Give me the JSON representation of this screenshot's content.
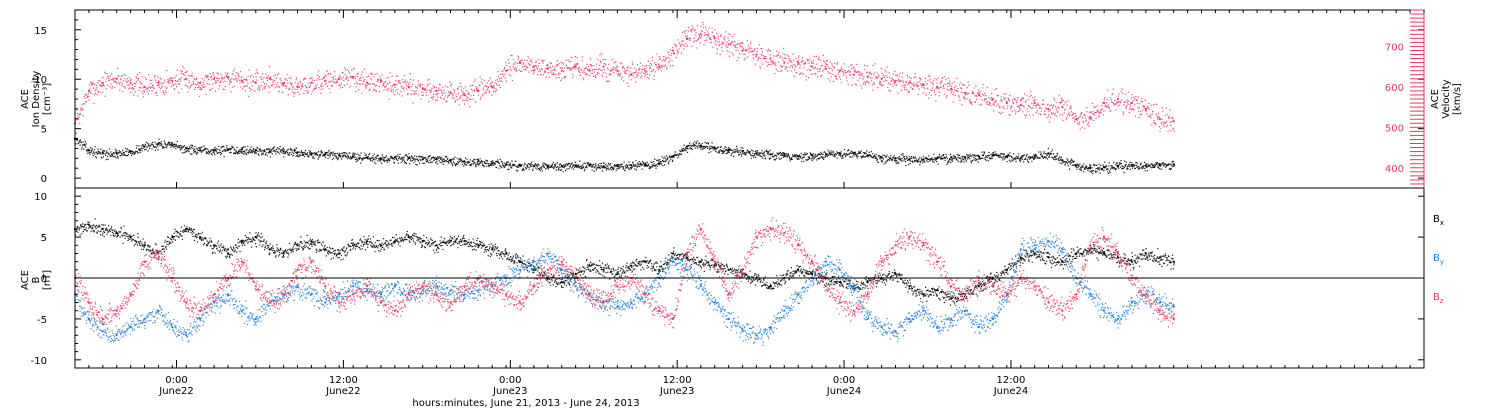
{
  "chart_data": [
    {
      "type": "scatter",
      "panel": "top",
      "ylabel_left": [
        "ACE",
        "Ion Density",
        "[cm⁻³]"
      ],
      "ylabel_right": [
        "ACE",
        "Velocity",
        "[km/s]"
      ],
      "ylim_left": [
        -1,
        17
      ],
      "ylim_right": [
        350,
        790
      ],
      "yticks_left": [
        0,
        5,
        10,
        15
      ],
      "yticks_right": [
        400,
        500,
        600,
        700
      ],
      "grid": false,
      "series": [
        {
          "axis": "left",
          "color": "#000000",
          "x": [
            0,
            1,
            2,
            3,
            4,
            5,
            6,
            7,
            8,
            9,
            10,
            11,
            12,
            13,
            14,
            15,
            16,
            17,
            18,
            19,
            20,
            21,
            22,
            23,
            24,
            25,
            26,
            27,
            28,
            29,
            30,
            31,
            32,
            33,
            34,
            35,
            36,
            37,
            38,
            39,
            40,
            41,
            42,
            43,
            44,
            45,
            46,
            47,
            48,
            49,
            50,
            51,
            52,
            53,
            54,
            55,
            56,
            57,
            58,
            59,
            60,
            61,
            62,
            63,
            64,
            65,
            66,
            67,
            68,
            69,
            70,
            71,
            72,
            73,
            74,
            75,
            76,
            77,
            78,
            79
          ],
          "y": [
            4,
            2.8,
            2.5,
            2.5,
            2.7,
            3.2,
            3.5,
            3.3,
            3,
            2.8,
            2.8,
            2.9,
            2.9,
            2.8,
            2.7,
            2.7,
            2.6,
            2.5,
            2.4,
            2.3,
            2.2,
            2.1,
            2,
            2.1,
            2,
            1.9,
            1.9,
            1.8,
            1.7,
            1.7,
            1.5,
            1.4,
            1.3,
            1.2,
            1.2,
            1.2,
            1.3,
            1.3,
            1.2,
            1.2,
            1.3,
            1.4,
            1.5,
            2.2,
            3.2,
            3.3,
            3,
            2.8,
            2.7,
            2.5,
            2.4,
            2.3,
            2.2,
            2.3,
            2.4,
            2.5,
            2.5,
            2.3,
            2.1,
            2,
            1.9,
            1.9,
            2,
            2.1,
            2.1,
            2.2,
            2.3,
            2.2,
            2,
            2.2,
            2.5,
            1.8,
            1.3,
            1,
            1.1,
            1.2,
            1.3,
            1.3,
            1.4,
            1.4
          ]
        },
        {
          "axis": "right",
          "color": "#e8375e",
          "x": [
            0,
            1,
            2,
            3,
            4,
            5,
            6,
            7,
            8,
            9,
            10,
            11,
            12,
            13,
            14,
            15,
            16,
            17,
            18,
            19,
            20,
            21,
            22,
            23,
            24,
            25,
            26,
            27,
            28,
            29,
            30,
            31,
            32,
            33,
            34,
            35,
            36,
            37,
            38,
            39,
            40,
            41,
            42,
            43,
            44,
            45,
            46,
            47,
            48,
            49,
            50,
            51,
            52,
            53,
            54,
            55,
            56,
            57,
            58,
            59,
            60,
            61,
            62,
            63,
            64,
            65,
            66,
            67,
            68,
            69,
            70,
            71,
            72,
            73,
            74,
            75,
            76,
            77,
            78,
            79
          ],
          "y": [
            510,
            590,
            610,
            620,
            610,
            600,
            610,
            615,
            620,
            610,
            620,
            625,
            615,
            610,
            620,
            610,
            600,
            610,
            615,
            620,
            625,
            610,
            615,
            605,
            600,
            595,
            590,
            585,
            580,
            590,
            600,
            640,
            660,
            650,
            645,
            640,
            650,
            640,
            650,
            640,
            630,
            640,
            650,
            690,
            720,
            730,
            720,
            705,
            690,
            680,
            670,
            660,
            660,
            650,
            645,
            640,
            630,
            625,
            620,
            615,
            610,
            605,
            600,
            595,
            585,
            580,
            570,
            560,
            555,
            560,
            545,
            550,
            520,
            525,
            560,
            570,
            560,
            545,
            520,
            515
          ]
        }
      ]
    },
    {
      "type": "scatter",
      "panel": "bottom",
      "ylabel_left": [
        "ACE",
        "B",
        "[nT]"
      ],
      "ylim_left": [
        -11,
        11
      ],
      "yticks_left": [
        -10,
        -5,
        0,
        5,
        10
      ],
      "zero_line": true,
      "grid": false,
      "legend_position": "right",
      "series": [
        {
          "name": "Bx",
          "label_main": "B",
          "label_sub": "x",
          "color": "#000000",
          "x": [
            0,
            1,
            2,
            3,
            4,
            5,
            6,
            7,
            8,
            9,
            10,
            11,
            12,
            13,
            14,
            15,
            16,
            17,
            18,
            19,
            20,
            21,
            22,
            23,
            24,
            25,
            26,
            27,
            28,
            29,
            30,
            31,
            32,
            33,
            34,
            35,
            36,
            37,
            38,
            39,
            40,
            41,
            42,
            43,
            44,
            45,
            46,
            47,
            48,
            49,
            50,
            51,
            52,
            53,
            54,
            55,
            56,
            57,
            58,
            59,
            60,
            61,
            62,
            63,
            64,
            65,
            66,
            67,
            68,
            69,
            70,
            71,
            72,
            73,
            74,
            75,
            76,
            77,
            78,
            79
          ],
          "y": [
            6,
            6.5,
            6,
            5.5,
            5,
            4,
            3,
            5,
            6,
            5,
            4,
            3,
            4.5,
            5,
            3.5,
            3,
            4,
            4.5,
            3.5,
            3,
            4,
            4.5,
            4,
            4.5,
            5,
            4.5,
            4,
            4.5,
            4.5,
            4,
            3.5,
            3,
            2,
            1,
            0,
            -0.5,
            0.5,
            1.5,
            1,
            0.5,
            1.5,
            2,
            1,
            3,
            2.5,
            2,
            1.5,
            1,
            0.5,
            0,
            -1,
            0,
            1,
            0.5,
            0,
            -0.5,
            -1,
            -0.5,
            0,
            0.5,
            -1,
            -2,
            -1.5,
            -2.5,
            -2,
            -1,
            0,
            1,
            2.5,
            3,
            2.5,
            2,
            3,
            3.5,
            3,
            2.5,
            2,
            3,
            2.5,
            2
          ]
        },
        {
          "name": "By",
          "label_main": "B",
          "label_sub": "y",
          "color": "#1f7fd6",
          "x": [
            0,
            1,
            2,
            3,
            4,
            5,
            6,
            7,
            8,
            9,
            10,
            11,
            12,
            13,
            14,
            15,
            16,
            17,
            18,
            19,
            20,
            21,
            22,
            23,
            24,
            25,
            26,
            27,
            28,
            29,
            30,
            31,
            32,
            33,
            34,
            35,
            36,
            37,
            38,
            39,
            40,
            41,
            42,
            43,
            44,
            45,
            46,
            47,
            48,
            49,
            50,
            51,
            52,
            53,
            54,
            55,
            56,
            57,
            58,
            59,
            60,
            61,
            62,
            63,
            64,
            65,
            66,
            67,
            68,
            69,
            70,
            71,
            72,
            73,
            74,
            75,
            76,
            77,
            78,
            79
          ],
          "y": [
            -2,
            -5,
            -6.5,
            -7,
            -6,
            -5,
            -4,
            -6,
            -7,
            -5,
            -3,
            -2,
            -4,
            -5,
            -3,
            -2,
            -1,
            -2,
            -3,
            -2,
            -1,
            -1.5,
            -2,
            -1,
            -2,
            -1.5,
            -1,
            -1.5,
            -2,
            -1.5,
            -1,
            0,
            1,
            2,
            3,
            1,
            -1,
            -2,
            -3,
            -3.5,
            -3,
            -2,
            0,
            2,
            1,
            -1,
            -3,
            -5,
            -6.5,
            -7,
            -6,
            -4,
            -2,
            0,
            2,
            1,
            -1,
            -5,
            -6,
            -6.5,
            -5,
            -4,
            -6,
            -5,
            -4,
            -6,
            -5,
            -2,
            3.5,
            4,
            4.5,
            3.5,
            0,
            -2,
            -4,
            -5,
            -3,
            -2,
            -3,
            -3.5
          ]
        },
        {
          "name": "Bz",
          "label_main": "B",
          "label_sub": "z",
          "color": "#e8375e",
          "x": [
            0,
            1,
            2,
            3,
            4,
            5,
            6,
            7,
            8,
            9,
            10,
            11,
            12,
            13,
            14,
            15,
            16,
            17,
            18,
            19,
            20,
            21,
            22,
            23,
            24,
            25,
            26,
            27,
            28,
            29,
            30,
            31,
            32,
            33,
            34,
            35,
            36,
            37,
            38,
            39,
            40,
            41,
            42,
            43,
            44,
            45,
            46,
            47,
            48,
            49,
            50,
            51,
            52,
            53,
            54,
            55,
            56,
            57,
            58,
            59,
            60,
            61,
            62,
            63,
            64,
            65,
            66,
            67,
            68,
            69,
            70,
            71,
            72,
            73,
            74,
            75,
            76,
            77,
            78,
            79
          ],
          "y": [
            0,
            -3,
            -5,
            -4,
            -2,
            2,
            3,
            0,
            -3,
            -4,
            -2,
            0,
            2,
            -1,
            -3,
            -2,
            1,
            2,
            -1,
            -3,
            -2,
            -1,
            -3,
            -4,
            -2,
            -1,
            -2,
            -3,
            -1,
            0,
            -1,
            -2,
            -3,
            -1,
            1,
            2,
            0,
            -2,
            -3,
            -1,
            0,
            -2,
            -4,
            -5,
            3,
            6,
            2,
            -2,
            1,
            5,
            6,
            5.5,
            4,
            2,
            -1,
            -3,
            -4,
            -2,
            2,
            4,
            5,
            4,
            2,
            -1,
            -2,
            0,
            -1,
            -2,
            0,
            -1,
            -3,
            -4,
            -2,
            4,
            5,
            3,
            0,
            -2,
            -4,
            -5
          ]
        }
      ]
    }
  ],
  "x_axis": {
    "range": [
      0,
      97
    ],
    "tick_labels": [
      {
        "time": "0:00",
        "date": "June22"
      },
      {
        "time": "12:00",
        "date": "June22"
      },
      {
        "time": "0:00",
        "date": "June23"
      },
      {
        "time": "12:00",
        "date": "June23"
      },
      {
        "time": "0:00",
        "date": "June24"
      },
      {
        "time": "12:00",
        "date": "June24"
      }
    ],
    "tick_positions_hours": [
      7.3,
      19.3,
      31.3,
      43.3,
      55.3,
      67.3
    ],
    "xlabel": "hours:minutes, June 21, 2013 - June 24, 2013"
  }
}
